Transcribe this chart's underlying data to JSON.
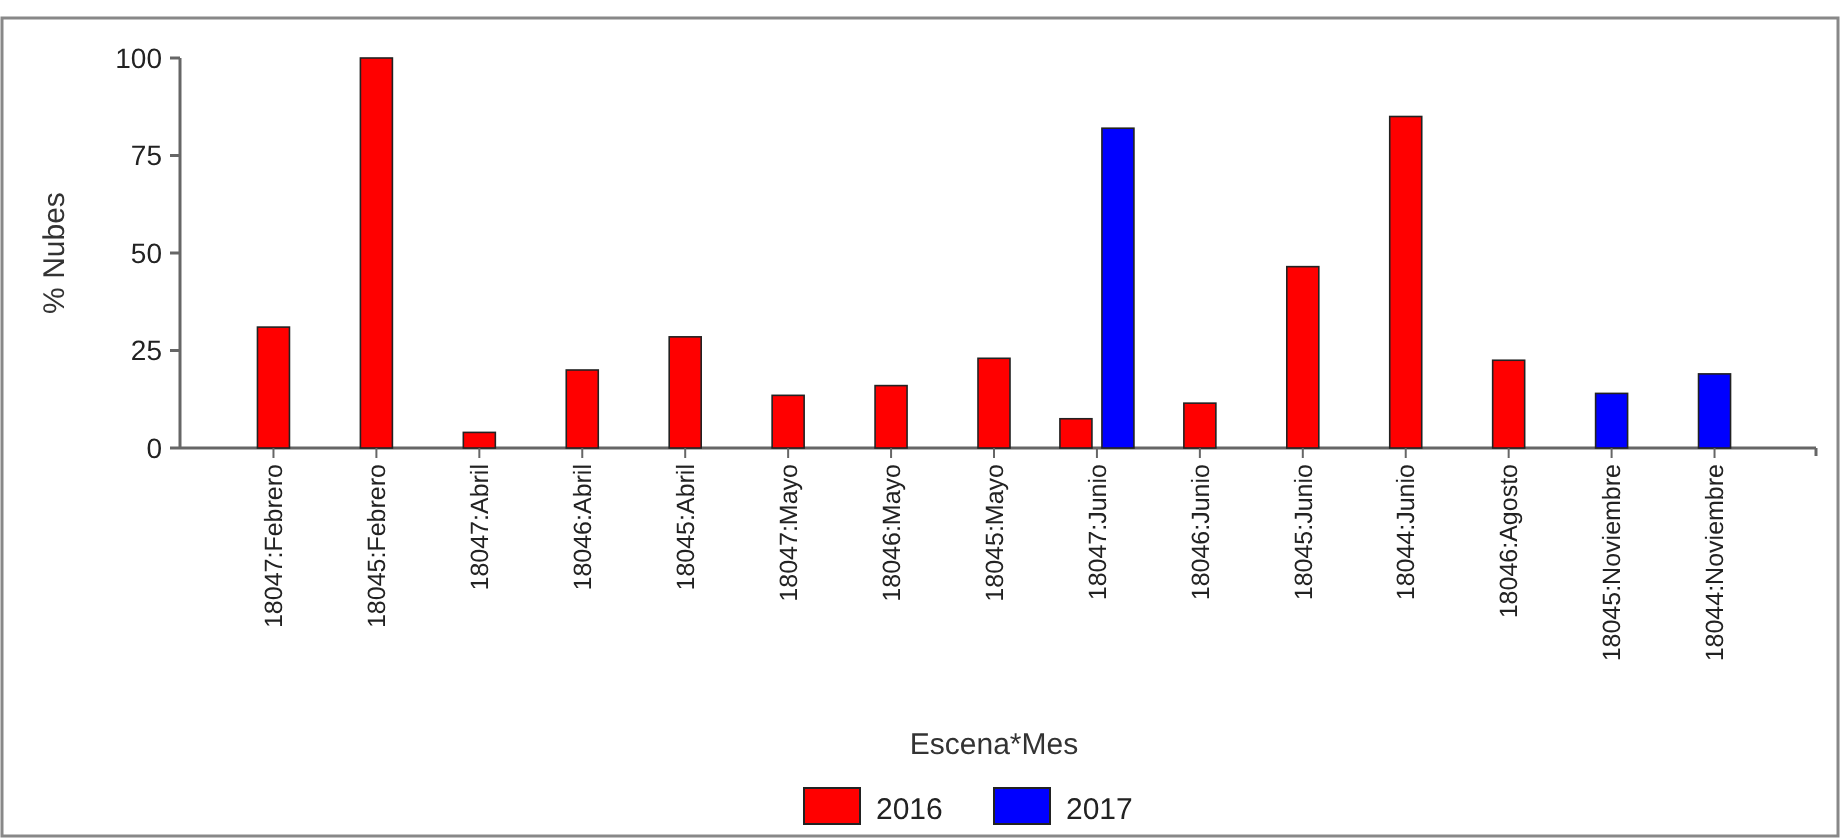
{
  "chart_data": {
    "type": "bar",
    "xlabel": "Escena*Mes",
    "ylabel": "% Nubes",
    "categories": [
      "18047:Febrero",
      "18045:Febrero",
      "18047:Abril",
      "18046:Abril",
      "18045:Abril",
      "18047:Mayo",
      "18046:Mayo",
      "18045:Mayo",
      "18047:Junio",
      "18046:Junio",
      "18045:Junio",
      "18044:Junio",
      "18046:Agosto",
      "18045:Noviembre",
      "18044:Noviembre"
    ],
    "series": [
      {
        "name": "2016",
        "color": "#ff0000",
        "values": [
          31,
          100,
          4,
          20,
          28.5,
          13.5,
          16,
          23,
          7.5,
          11.5,
          46.5,
          85,
          22.5,
          null,
          null
        ]
      },
      {
        "name": "2017",
        "color": "#0000ff",
        "values": [
          null,
          null,
          null,
          null,
          null,
          null,
          null,
          null,
          82,
          null,
          null,
          null,
          null,
          14,
          19
        ]
      }
    ],
    "ylim": [
      0,
      100
    ],
    "yticks": [
      0,
      25,
      50,
      75,
      100
    ],
    "grid": false,
    "legend": "bottom"
  }
}
